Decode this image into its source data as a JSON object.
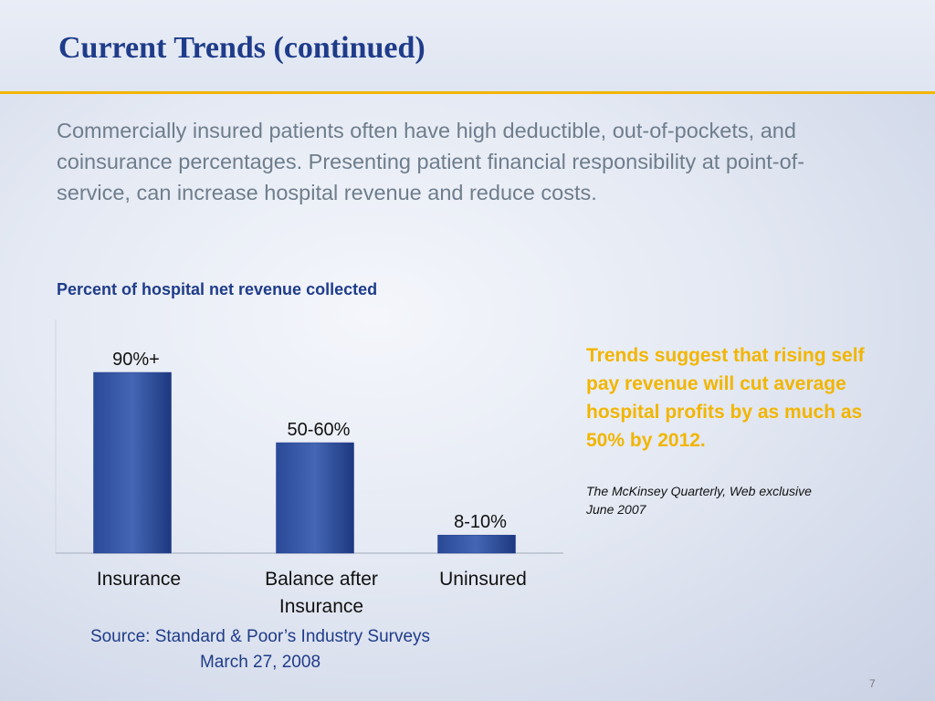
{
  "slide": {
    "title": "Current Trends (continued)",
    "body": "Commercially insured patients often have high deductible, out-of-pockets, and coinsurance percentages.  Presenting patient financial responsibility at point-of-service, can increase hospital revenue and reduce costs.",
    "chart_heading": "Percent of hospital net revenue collected",
    "callout": "Trends suggest that rising self pay revenue  will cut average hospital profits by as much as 50% by 2012.",
    "citation_line1": "The McKinsey Quarterly, Web exclusive",
    "citation_line2": "June 2007",
    "source_line1": "Source: Standard & Poor’s Industry Surveys",
    "source_line2": "March 27, 2008",
    "page_number": "7"
  },
  "colors": {
    "title": "#1f3c8a",
    "accent_rule": "#f2b500",
    "body_text": "#6e7d8c",
    "callout": "#f2b500",
    "bar": "#1f3c8a"
  },
  "chart_data": {
    "type": "bar",
    "title": "Percent of hospital net revenue collected",
    "categories": [
      "Insurance",
      "Balance after Insurance",
      "Uninsured"
    ],
    "category_lines": [
      [
        "Insurance"
      ],
      [
        "Balance after",
        "Insurance"
      ],
      [
        "Uninsured"
      ]
    ],
    "values": [
      90,
      55,
      9
    ],
    "data_labels": [
      "90%+",
      "50-60%",
      "8-10%"
    ],
    "ylim": [
      0,
      100
    ],
    "grid": false,
    "xlabel": "",
    "ylabel": ""
  }
}
